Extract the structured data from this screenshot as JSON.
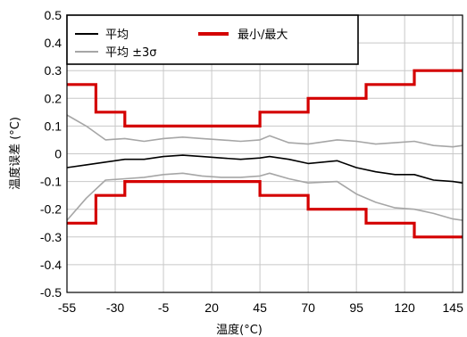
{
  "chart_data": {
    "type": "line",
    "xlabel": "温度(°C)",
    "ylabel": "温度误差 (°C)",
    "xlim": [
      -55,
      150
    ],
    "ylim": [
      -0.5,
      0.5
    ],
    "x_ticks": [
      -55,
      -30,
      -5,
      20,
      45,
      70,
      95,
      120,
      145
    ],
    "y_ticks": [
      0.5,
      0.4,
      0.3,
      0.2,
      0.1,
      0,
      -0.1,
      -0.2,
      -0.3,
      -0.4,
      -0.5
    ],
    "y_tick_labels": [
      "0.5",
      "0.4",
      "0.3",
      "0.2",
      "0.1",
      "0",
      "-0.1",
      "-0.2",
      "-0.3",
      "-0.4",
      "-0.5"
    ],
    "grid": true,
    "legend_position": "top-left",
    "series": [
      {
        "name": "平均",
        "color": "#000000",
        "style": "line",
        "x": [
          -55,
          -45,
          -35,
          -25,
          -15,
          -5,
          5,
          15,
          25,
          35,
          45,
          50,
          60,
          70,
          85,
          95,
          105,
          115,
          125,
          135,
          145,
          150
        ],
        "y": [
          -0.05,
          -0.04,
          -0.03,
          -0.02,
          -0.02,
          -0.01,
          -0.005,
          -0.01,
          -0.015,
          -0.02,
          -0.015,
          -0.01,
          -0.02,
          -0.035,
          -0.025,
          -0.05,
          -0.065,
          -0.075,
          -0.075,
          -0.095,
          -0.1,
          -0.105
        ]
      },
      {
        "name": "平均 ±3σ",
        "color": "#a6a6a6",
        "style": "line",
        "x": [
          -55,
          -45,
          -35,
          -25,
          -15,
          -5,
          5,
          15,
          25,
          35,
          45,
          50,
          60,
          70,
          85,
          95,
          105,
          115,
          125,
          135,
          145,
          150
        ],
        "y": [
          0.14,
          0.1,
          0.05,
          0.055,
          0.045,
          0.055,
          0.06,
          0.055,
          0.05,
          0.045,
          0.05,
          0.065,
          0.04,
          0.035,
          0.05,
          0.045,
          0.035,
          0.04,
          0.045,
          0.03,
          0.025,
          0.03
        ]
      },
      {
        "name": "",
        "color": "#a6a6a6",
        "style": "line",
        "x": [
          -55,
          -45,
          -35,
          -25,
          -15,
          -5,
          5,
          15,
          25,
          35,
          45,
          50,
          60,
          70,
          85,
          95,
          105,
          115,
          125,
          135,
          145,
          150
        ],
        "y": [
          -0.24,
          -0.16,
          -0.095,
          -0.09,
          -0.085,
          -0.075,
          -0.07,
          -0.08,
          -0.085,
          -0.085,
          -0.08,
          -0.07,
          -0.09,
          -0.105,
          -0.1,
          -0.145,
          -0.175,
          -0.195,
          -0.2,
          -0.215,
          -0.235,
          -0.24
        ]
      },
      {
        "name": "最小/最大",
        "color": "#d40000",
        "style": "step",
        "x": [
          -55,
          -40,
          -40,
          -25,
          -25,
          45,
          45,
          70,
          70,
          100,
          100,
          125,
          125,
          150
        ],
        "y": [
          0.25,
          0.25,
          0.15,
          0.15,
          0.1,
          0.1,
          0.15,
          0.15,
          0.2,
          0.2,
          0.25,
          0.25,
          0.3,
          0.3
        ]
      },
      {
        "name": "",
        "color": "#d40000",
        "style": "step",
        "x": [
          -55,
          -40,
          -40,
          -25,
          -25,
          45,
          45,
          70,
          70,
          100,
          100,
          125,
          125,
          150
        ],
        "y": [
          -0.25,
          -0.25,
          -0.15,
          -0.15,
          -0.1,
          -0.1,
          -0.15,
          -0.15,
          -0.2,
          -0.2,
          -0.25,
          -0.25,
          -0.3,
          -0.3
        ]
      }
    ],
    "legend": [
      {
        "label": "平均",
        "color": "#000000"
      },
      {
        "label": "平均 ±3σ",
        "color": "#a6a6a6"
      },
      {
        "label": "最小/最大",
        "color": "#d40000"
      }
    ]
  }
}
